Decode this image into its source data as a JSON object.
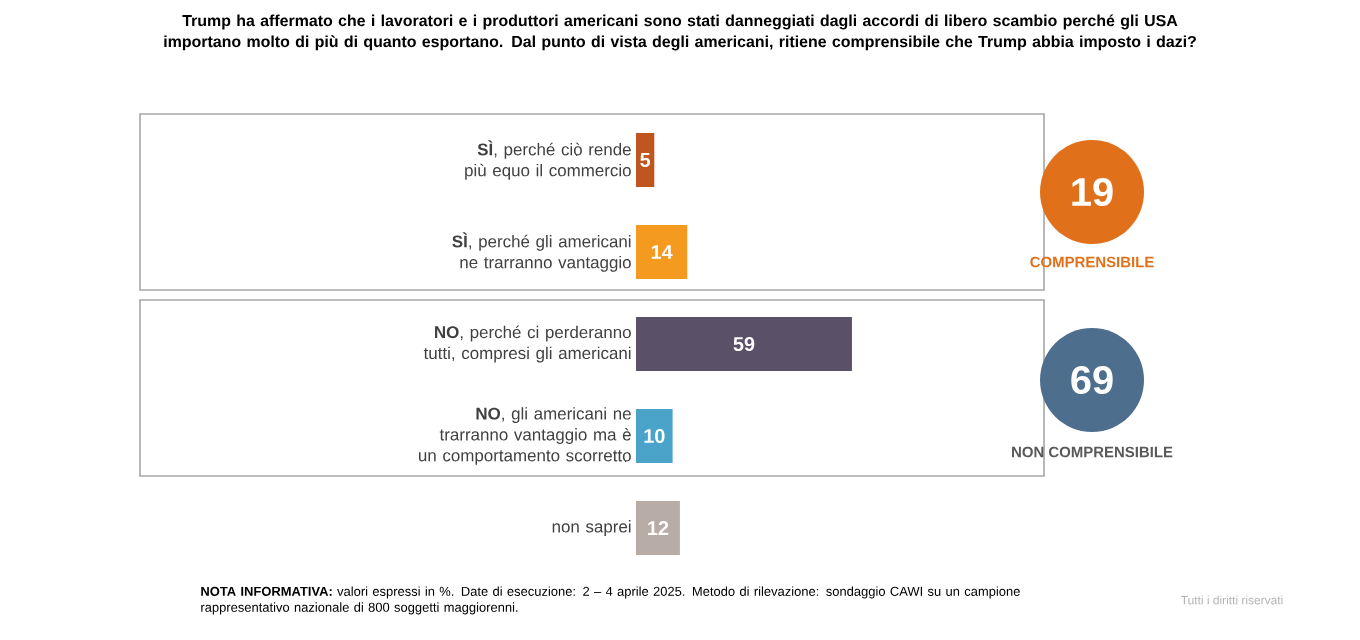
{
  "chart_data": {
    "type": "bar",
    "orientation": "horizontal",
    "title": "Trump ha affermato che i lavoratori e i produttori americani sono stati danneggiati dagli accordi di libero scambio perché gli USA importano molto di più di quanto esportano. Dal punto di vista degli americani, ritiene comprensibile che Trump abbia imposto i dazi?",
    "categories": [
      "**SÌ**, perché ciò rende più equo il commercio",
      "**SÌ**, perché gli americani ne trarranno vantaggio",
      "**NO**, perché ci perderanno tutti, compresi gli americani",
      "**NO**, gli americani ne trarranno vantaggio ma è un comportamento scorretto",
      "non saprei"
    ],
    "values": [
      5,
      14,
      59,
      10,
      12
    ],
    "colors": [
      "#c0561f",
      "#f39a1f",
      "#5a5068",
      "#4aa3c8",
      "#b8aca6"
    ],
    "data_labels": true,
    "tick_labels": "y",
    "annotations": [
      "19",
      "COMPRENSIBILE",
      "69",
      "NON COMPRENSIBILE",
      "**NOTA INFORMATIVA:** valori espressi in %. Date di esecuzione: 2 – 4 aprile 2025. Metodo di rilevazione: sondaggio CAWI su un campione rappresentativo nazionale di 800 soggetti maggiorenni.",
      "Tutti i diritti riservati"
    ]
  }
}
